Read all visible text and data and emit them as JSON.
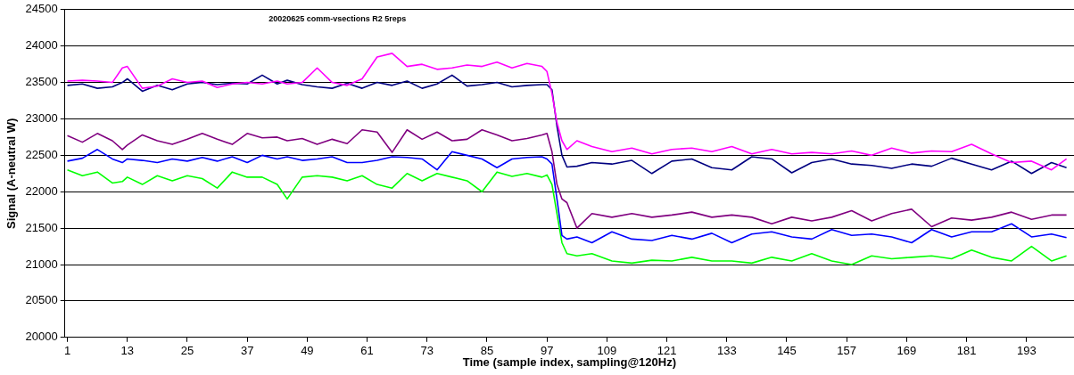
{
  "chart_data": {
    "type": "line",
    "title": "20020625 comm-vsections R2 5reps",
    "xlabel": "Time (sample index, sampling@120Hz)",
    "ylabel": "Signal (A-neutral W)",
    "x": [
      1,
      4,
      7,
      10,
      12,
      13,
      16,
      19,
      22,
      25,
      28,
      31,
      34,
      37,
      40,
      43,
      45,
      48,
      51,
      54,
      57,
      60,
      63,
      66,
      69,
      72,
      75,
      78,
      81,
      84,
      87,
      90,
      93,
      96,
      97,
      98,
      99,
      100,
      101,
      103,
      106,
      110,
      114,
      118,
      122,
      126,
      130,
      134,
      138,
      142,
      146,
      150,
      154,
      158,
      162,
      166,
      170,
      174,
      178,
      182,
      186,
      190,
      194,
      198,
      201
    ],
    "xlim": [
      0.5,
      202.5
    ],
    "xticks": [
      1,
      13,
      25,
      37,
      49,
      61,
      73,
      85,
      97,
      109,
      121,
      133,
      145,
      157,
      169,
      181,
      193
    ],
    "ylim": [
      20000,
      24500
    ],
    "yticks": [
      20000,
      20500,
      21000,
      21500,
      22000,
      22500,
      23000,
      23500,
      24000,
      24500
    ],
    "grid": "y",
    "legend": false,
    "marker": "none",
    "line_style": "solid",
    "series": [
      {
        "color": "#ff00ff",
        "values": [
          23520,
          23530,
          23520,
          23500,
          23700,
          23720,
          23420,
          23450,
          23550,
          23500,
          23520,
          23430,
          23480,
          23500,
          23480,
          23520,
          23480,
          23500,
          23700,
          23500,
          23460,
          23550,
          23850,
          23900,
          23720,
          23750,
          23680,
          23700,
          23740,
          23720,
          23780,
          23700,
          23760,
          23720,
          23650,
          23350,
          22950,
          22700,
          22580,
          22700,
          22620,
          22550,
          22600,
          22520,
          22580,
          22600,
          22550,
          22620,
          22520,
          22580,
          22520,
          22540,
          22520,
          22560,
          22500,
          22600,
          22530,
          22560,
          22550,
          22650,
          22520,
          22400,
          22420,
          22300,
          22450
        ]
      },
      {
        "color": "#000080",
        "values": [
          23460,
          23480,
          23420,
          23440,
          23500,
          23550,
          23380,
          23460,
          23400,
          23480,
          23500,
          23470,
          23490,
          23480,
          23600,
          23480,
          23530,
          23470,
          23440,
          23420,
          23490,
          23420,
          23500,
          23460,
          23520,
          23420,
          23480,
          23600,
          23450,
          23470,
          23500,
          23440,
          23460,
          23470,
          23470,
          23400,
          22900,
          22500,
          22340,
          22350,
          22400,
          22380,
          22430,
          22250,
          22420,
          22450,
          22330,
          22300,
          22480,
          22450,
          22260,
          22400,
          22450,
          22380,
          22360,
          22320,
          22380,
          22350,
          22460,
          22380,
          22300,
          22420,
          22250,
          22400,
          22330
        ]
      },
      {
        "color": "#800080",
        "values": [
          22770,
          22680,
          22800,
          22700,
          22580,
          22640,
          22780,
          22700,
          22650,
          22720,
          22800,
          22720,
          22650,
          22800,
          22740,
          22750,
          22700,
          22730,
          22650,
          22720,
          22660,
          22850,
          22820,
          22540,
          22850,
          22720,
          22820,
          22700,
          22720,
          22850,
          22780,
          22700,
          22730,
          22780,
          22800,
          22550,
          22100,
          21900,
          21850,
          21500,
          21700,
          21650,
          21700,
          21650,
          21680,
          21720,
          21650,
          21680,
          21650,
          21560,
          21650,
          21600,
          21650,
          21740,
          21600,
          21700,
          21760,
          21520,
          21640,
          21610,
          21650,
          21720,
          21620,
          21680,
          21680
        ]
      },
      {
        "color": "#0000ff",
        "values": [
          22420,
          22460,
          22580,
          22450,
          22400,
          22450,
          22430,
          22400,
          22450,
          22420,
          22470,
          22420,
          22480,
          22400,
          22500,
          22450,
          22480,
          22430,
          22450,
          22480,
          22400,
          22400,
          22430,
          22480,
          22470,
          22450,
          22300,
          22550,
          22500,
          22450,
          22330,
          22450,
          22470,
          22480,
          22450,
          22380,
          21900,
          21400,
          21350,
          21380,
          21300,
          21450,
          21350,
          21330,
          21400,
          21350,
          21430,
          21300,
          21420,
          21450,
          21380,
          21350,
          21480,
          21400,
          21420,
          21380,
          21300,
          21480,
          21380,
          21450,
          21450,
          21560,
          21380,
          21420,
          21370
        ]
      },
      {
        "color": "#00ff00",
        "values": [
          22300,
          22220,
          22270,
          22120,
          22140,
          22200,
          22100,
          22220,
          22150,
          22220,
          22180,
          22050,
          22270,
          22200,
          22200,
          22100,
          21900,
          22200,
          22220,
          22200,
          22150,
          22220,
          22100,
          22050,
          22250,
          22150,
          22250,
          22200,
          22150,
          22000,
          22270,
          22210,
          22250,
          22200,
          22230,
          22100,
          21700,
          21300,
          21150,
          21120,
          21150,
          21050,
          21020,
          21060,
          21050,
          21100,
          21050,
          21050,
          21020,
          21100,
          21050,
          21150,
          21050,
          21000,
          21120,
          21080,
          21100,
          21120,
          21080,
          21200,
          21100,
          21050,
          21250,
          21050,
          21120
        ]
      }
    ]
  }
}
